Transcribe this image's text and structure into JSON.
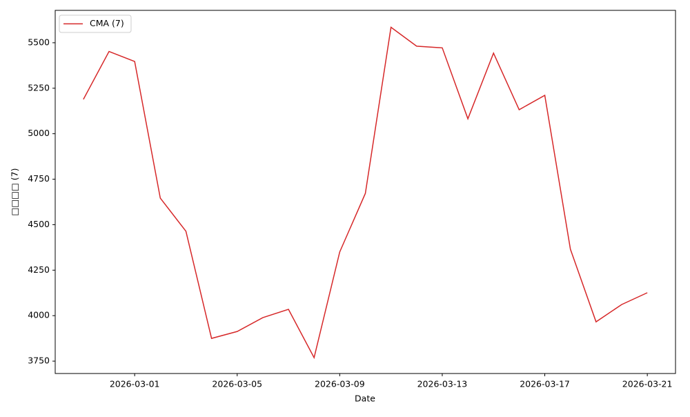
{
  "chart_data": {
    "type": "line",
    "x": [
      "2026-02-27",
      "2026-02-28",
      "2026-03-01",
      "2026-03-02",
      "2026-03-03",
      "2026-03-04",
      "2026-03-05",
      "2026-03-06",
      "2026-03-07",
      "2026-03-08",
      "2026-03-09",
      "2026-03-10",
      "2026-03-11",
      "2026-03-12",
      "2026-03-13",
      "2026-03-14",
      "2026-03-15",
      "2026-03-16",
      "2026-03-17",
      "2026-03-18",
      "2026-03-19",
      "2026-03-20",
      "2026-03-21"
    ],
    "series": [
      {
        "name": "CMA (7)",
        "color": "#d62728",
        "values": [
          5189,
          5452,
          5397,
          4646,
          4464,
          3875,
          3913,
          3989,
          4035,
          3769,
          4350,
          4672,
          5585,
          5481,
          5472,
          5082,
          5443,
          5132,
          5211,
          4365,
          3966,
          4061,
          4126
        ]
      }
    ],
    "x_label": "Date",
    "y_label": "□□□□ (7)",
    "xlim": [
      "2026-02-25T21:36",
      "2026-03-22T02:24"
    ],
    "xticks": [
      "2026-03-01",
      "2026-03-05",
      "2026-03-09",
      "2026-03-13",
      "2026-03-17",
      "2026-03-21"
    ],
    "ylim": [
      3682,
      5678
    ],
    "yticks": [
      3750,
      4000,
      4250,
      4500,
      4750,
      5000,
      5250,
      5500
    ],
    "legend": "upper left",
    "grid": false
  }
}
